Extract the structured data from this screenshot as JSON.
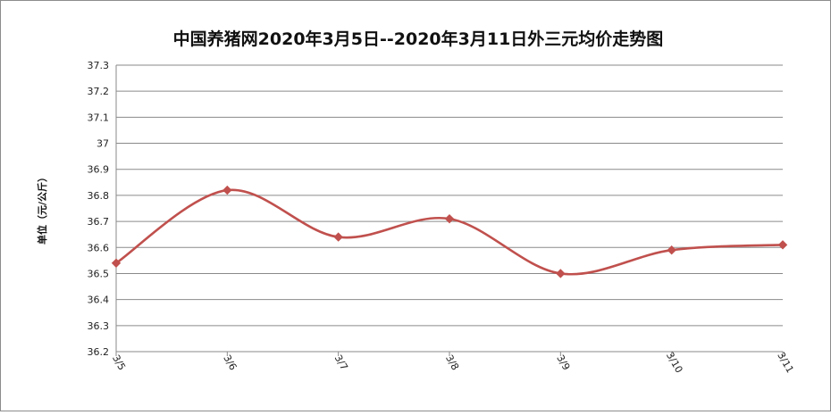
{
  "chart_data": {
    "type": "line",
    "title": "中国养猪网2020年3月5日--2020年3月11日外三元均价走势图",
    "ylabel": "单位（元/公斤）",
    "xlabel": "",
    "categories": [
      "3/5",
      "3/6",
      "3/7",
      "3/8",
      "3/9",
      "3/10",
      "3/11"
    ],
    "series": [
      {
        "values": [
          36.54,
          36.82,
          36.64,
          36.71,
          36.5,
          36.59,
          36.61
        ]
      }
    ],
    "ylim": [
      36.2,
      37.3
    ],
    "yticks": [
      "36.2",
      "36.3",
      "36.4",
      "36.5",
      "36.6",
      "36.7",
      "36.8",
      "36.9",
      "37",
      "37.1",
      "37.2",
      "37.3"
    ],
    "grid": true,
    "smooth": true,
    "legend": "none",
    "line_color": "#c0504d",
    "marker": "diamond"
  }
}
